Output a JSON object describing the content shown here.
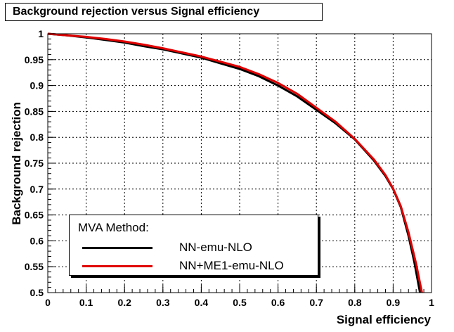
{
  "chart_data": {
    "type": "line",
    "title": "Background rejection versus Signal efficiency",
    "xlabel": "Signal efficiency",
    "ylabel": "Background rejection",
    "xlim": [
      0,
      1
    ],
    "ylim": [
      0.5,
      1
    ],
    "xticks": [
      "0",
      "0.1",
      "0.2",
      "0.3",
      "0.4",
      "0.5",
      "0.6",
      "0.7",
      "0.8",
      "0.9",
      "1"
    ],
    "yticks": [
      "0.5",
      "0.55",
      "0.6",
      "0.65",
      "0.7",
      "0.75",
      "0.8",
      "0.85",
      "0.9",
      "0.95",
      "1"
    ],
    "grid": true,
    "legend": {
      "title": "MVA Method:",
      "placement": "bottom-left"
    },
    "series": [
      {
        "name": "NN-emu-NLO",
        "color": "#000000",
        "x": [
          0.0,
          0.05,
          0.1,
          0.15,
          0.2,
          0.25,
          0.3,
          0.35,
          0.4,
          0.45,
          0.5,
          0.55,
          0.6,
          0.65,
          0.7,
          0.75,
          0.8,
          0.85,
          0.88,
          0.9,
          0.92,
          0.94,
          0.955,
          0.97
        ],
        "y": [
          1.0,
          0.997,
          0.993,
          0.988,
          0.983,
          0.976,
          0.97,
          0.962,
          0.954,
          0.943,
          0.932,
          0.918,
          0.9,
          0.879,
          0.853,
          0.827,
          0.796,
          0.755,
          0.725,
          0.7,
          0.665,
          0.61,
          0.56,
          0.5
        ]
      },
      {
        "name": "NN+ME1-emu-NLO",
        "color": "#e00000",
        "x": [
          0.0,
          0.05,
          0.1,
          0.15,
          0.2,
          0.25,
          0.3,
          0.35,
          0.4,
          0.45,
          0.5,
          0.55,
          0.6,
          0.65,
          0.7,
          0.75,
          0.8,
          0.85,
          0.88,
          0.9,
          0.92,
          0.94,
          0.96,
          0.975
        ],
        "y": [
          1.0,
          0.997,
          0.994,
          0.99,
          0.985,
          0.979,
          0.972,
          0.964,
          0.956,
          0.946,
          0.936,
          0.922,
          0.905,
          0.884,
          0.857,
          0.83,
          0.797,
          0.757,
          0.727,
          0.701,
          0.667,
          0.617,
          0.555,
          0.5
        ]
      }
    ]
  }
}
